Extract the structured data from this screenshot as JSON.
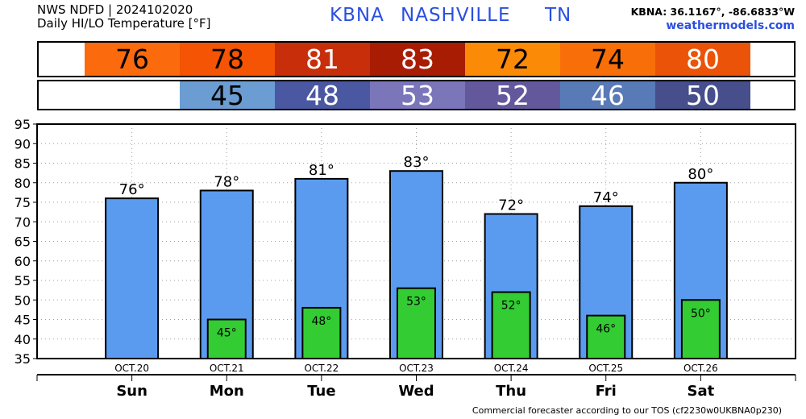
{
  "header": {
    "line1": "NWS NDFD | 2024102020",
    "line2": "Daily HI/LO Temperature [°F]",
    "station": "KBNA",
    "city": "NASHVILLE",
    "state": "TN",
    "coords": "KBNA: 36.1167°, -86.6833°W",
    "site": "weathermodels.com"
  },
  "footer": "Commercial forecaster according to our TOS (cf2230w0UKBNA0p230)",
  "colors": {
    "hi_bar": "#5b9bef",
    "lo_bar": "#33cc33",
    "hi_cells": [
      "#fb6a0d",
      "#f45404",
      "#c82e0a",
      "#a81c04",
      "#fb8a06",
      "#f86f09",
      "#eb5308"
    ],
    "lo_cells": [
      null,
      "#6b9dd3",
      "#4a57a1",
      "#7b75ba",
      "#64589d",
      "#587ab7",
      "#474e8c"
    ]
  },
  "chart_data": {
    "type": "bar",
    "categories": [
      "Sun",
      "Mon",
      "Tue",
      "Wed",
      "Thu",
      "Fri",
      "Sat"
    ],
    "dates": [
      "OCT.20",
      "OCT.21",
      "OCT.22",
      "OCT.23",
      "OCT.24",
      "OCT.25",
      "OCT.26"
    ],
    "series": [
      {
        "values": [
          76,
          78,
          81,
          83,
          72,
          74,
          80
        ]
      },
      {
        "values": [
          null,
          45,
          48,
          53,
          52,
          46,
          50
        ]
      }
    ],
    "hi_labels": [
      "76°",
      "78°",
      "81°",
      "83°",
      "72°",
      "74°",
      "80°"
    ],
    "lo_labels": [
      null,
      "45°",
      "48°",
      "53°",
      "52°",
      "46°",
      "50°"
    ],
    "ylim": [
      35,
      95
    ],
    "yticks": [
      35,
      40,
      45,
      50,
      55,
      60,
      65,
      70,
      75,
      80,
      85,
      90,
      95
    ],
    "grid": true
  }
}
